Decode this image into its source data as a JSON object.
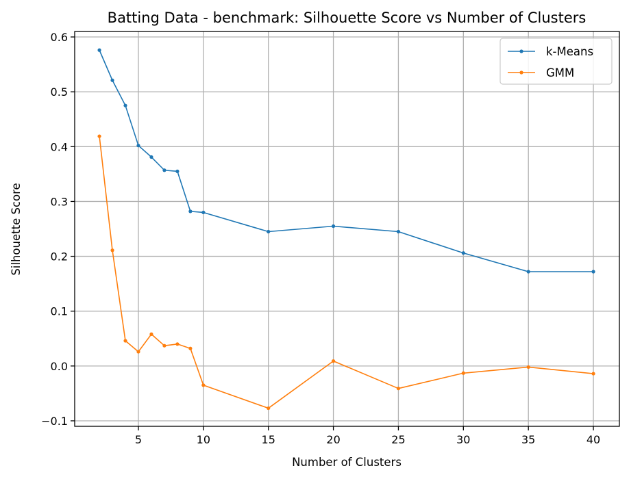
{
  "chart_data": {
    "type": "line",
    "title": "Batting Data - benchmark: Silhouette Score vs Number of Clusters",
    "xlabel": "Number of Clusters",
    "ylabel": "Silhouette Score",
    "x": [
      2,
      3,
      4,
      5,
      6,
      7,
      8,
      9,
      10,
      15,
      20,
      25,
      30,
      35,
      40
    ],
    "xlim": [
      0.1,
      42
    ],
    "ylim": [
      -0.11,
      0.61
    ],
    "xticks": [
      5,
      10,
      15,
      20,
      25,
      30,
      35,
      40
    ],
    "xtick_labels": [
      "5",
      "10",
      "15",
      "20",
      "25",
      "30",
      "35",
      "40"
    ],
    "yticks": [
      -0.1,
      0.0,
      0.1,
      0.2,
      0.3,
      0.4,
      0.5,
      0.6
    ],
    "ytick_labels": [
      "−0.1",
      "0.0",
      "0.1",
      "0.2",
      "0.3",
      "0.4",
      "0.5",
      "0.6"
    ],
    "grid": true,
    "legend_position": "top-right",
    "series": [
      {
        "name": "k-Means",
        "color": "#1f77b4",
        "values": [
          0.576,
          0.521,
          0.475,
          0.402,
          0.381,
          0.357,
          0.355,
          0.282,
          0.28,
          0.245,
          0.255,
          0.245,
          0.206,
          0.172,
          0.172
        ]
      },
      {
        "name": "GMM",
        "color": "#ff7f0e",
        "values": [
          0.419,
          0.211,
          0.046,
          0.026,
          0.058,
          0.037,
          0.04,
          0.032,
          -0.035,
          -0.077,
          0.009,
          -0.041,
          -0.013,
          -0.002,
          -0.014
        ]
      }
    ]
  }
}
